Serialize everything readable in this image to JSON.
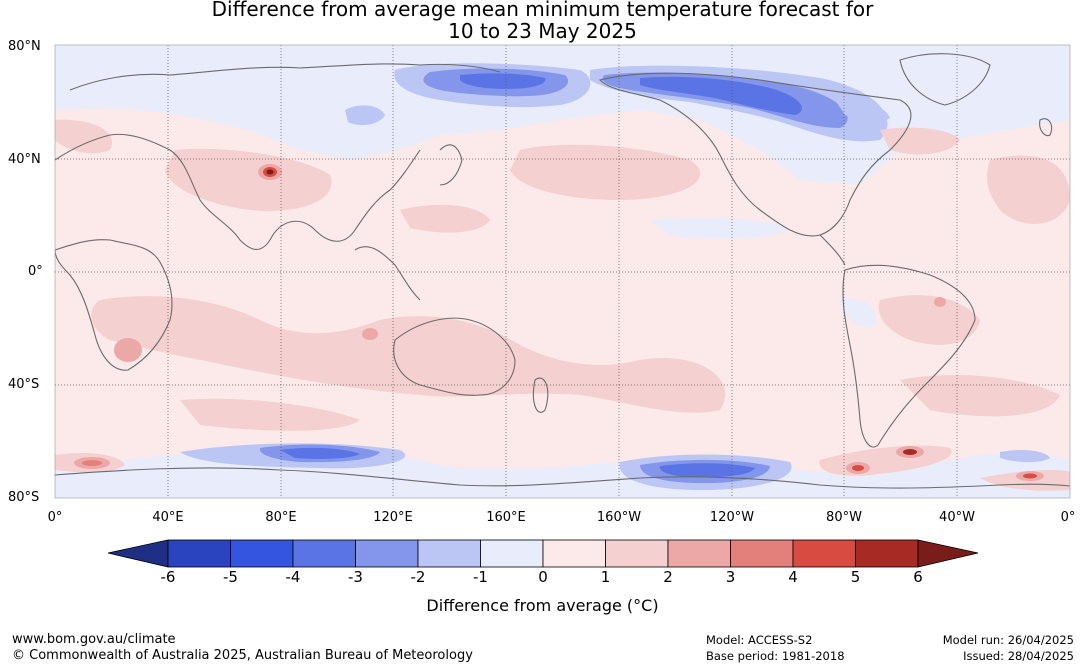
{
  "title_line1": "Difference from average mean minimum temperature forecast for",
  "title_line2": "10 to 23 May 2025",
  "lat_labels": [
    "80°N",
    "40°N",
    "0°",
    "40°S",
    "80°S"
  ],
  "lon_labels": [
    "0°",
    "40°E",
    "80°E",
    "120°E",
    "160°E",
    "160°W",
    "120°W",
    "80°W",
    "40°W",
    "0°"
  ],
  "colorbar": {
    "ticks": [
      "-6",
      "-5",
      "-4",
      "-3",
      "-2",
      "-1",
      "0",
      "1",
      "2",
      "3",
      "4",
      "5",
      "6"
    ],
    "title": "Difference from average (°C)",
    "colors": [
      "#1f2f86",
      "#2a44c0",
      "#3355e0",
      "#5a74e6",
      "#8396ec",
      "#bcc6f4",
      "#e9ecfb",
      "#fce9e9",
      "#f4d0d0",
      "#eba8a6",
      "#e3807b",
      "#d84b41",
      "#a82a24",
      "#7a1c1a"
    ]
  },
  "footer": {
    "left_line1": "www.bom.gov.au/climate",
    "left_line2": "© Commonwealth of Australia 2025, Australian Bureau of Meteorology",
    "model": "Model: ACCESS-S2",
    "base_period": "Base period: 1981-2018",
    "model_run": "Model run: 26/04/2025",
    "issued": "Issued: 28/04/2025"
  }
}
